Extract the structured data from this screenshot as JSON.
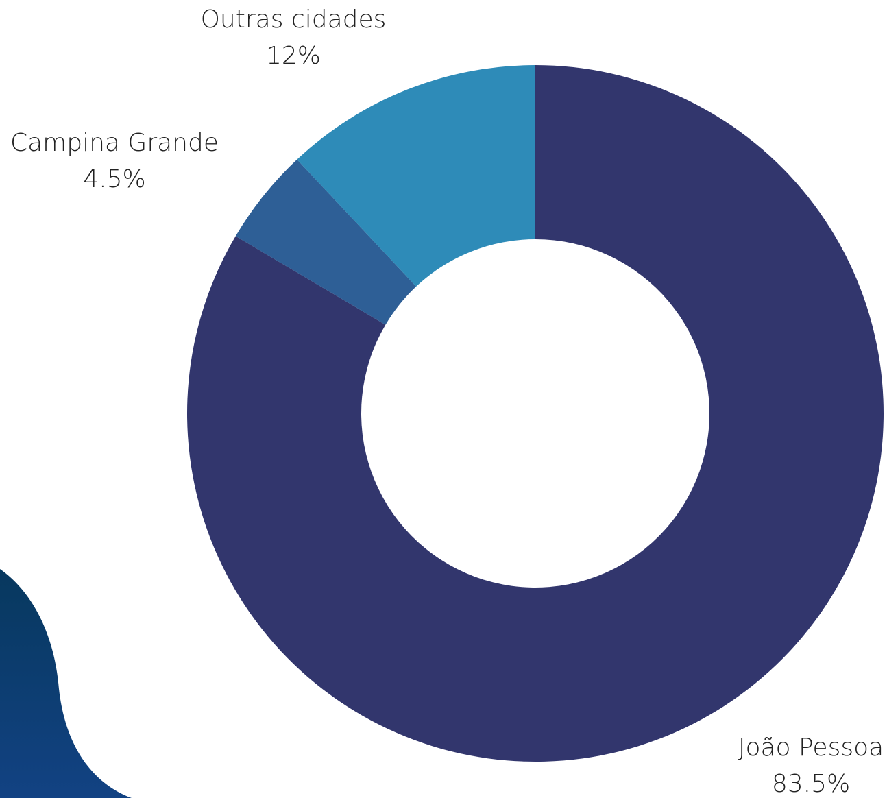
{
  "chart_data": {
    "type": "donut",
    "categories": [
      "João Pessoa",
      "Campina Grande",
      "Outras cidades"
    ],
    "values": [
      83.5,
      4.5,
      12
    ],
    "value_labels": [
      "83.5%",
      "4.5%",
      "12%"
    ],
    "colors": [
      "#32366d",
      "#2e5f96",
      "#2e8bb8"
    ]
  }
}
